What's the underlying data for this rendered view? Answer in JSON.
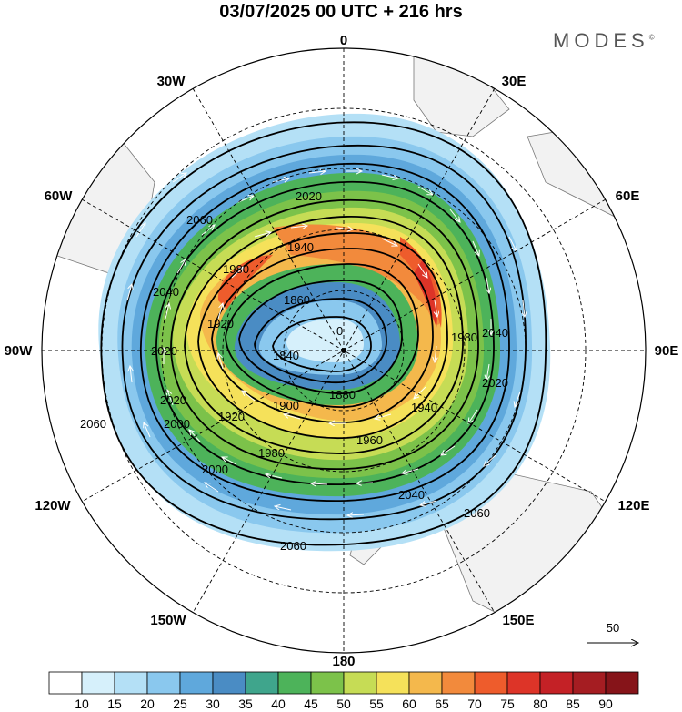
{
  "title": "03/07/2025  00 UTC  + 216 hrs",
  "brand": "MODES",
  "brand_mark": "©",
  "map": {
    "projection": "south-polar-stereographic",
    "longitude_labels": {
      "top": "0",
      "top_left": "30W",
      "top_right": "30E",
      "upper_left": "60W",
      "upper_right": "60E",
      "left": "90W",
      "right": "90E",
      "lower_left": "120W",
      "lower_right": "120E",
      "bottom_left": "150W",
      "bottom_right": "150E",
      "bottom": "180"
    },
    "contour_labels": [
      "2060",
      "2020",
      "1940",
      "1980",
      "1860",
      "2040",
      "1920",
      "2020",
      "1980",
      "2040",
      "1840",
      "0",
      "1920",
      "1900",
      "1880",
      "2020",
      "2020",
      "1940",
      "2000",
      "1960",
      "1980",
      "2000",
      "2040",
      "2060",
      "2060",
      "2060"
    ],
    "vector_reference": "50"
  },
  "colorbar": {
    "ticks": [
      "10",
      "15",
      "20",
      "25",
      "30",
      "35",
      "40",
      "45",
      "50",
      "55",
      "60",
      "65",
      "70",
      "75",
      "80",
      "85",
      "90"
    ],
    "colors": [
      "#ffffff",
      "#d6f0fb",
      "#b4e0f6",
      "#8ac8ee",
      "#5fa8dc",
      "#4a8cc4",
      "#3fa58c",
      "#4db35a",
      "#7cc24a",
      "#c6dc55",
      "#f5e15a",
      "#f4b84c",
      "#f28a3c",
      "#ee5c2c",
      "#dd3428",
      "#c42126",
      "#a51d22",
      "#861419"
    ]
  }
}
